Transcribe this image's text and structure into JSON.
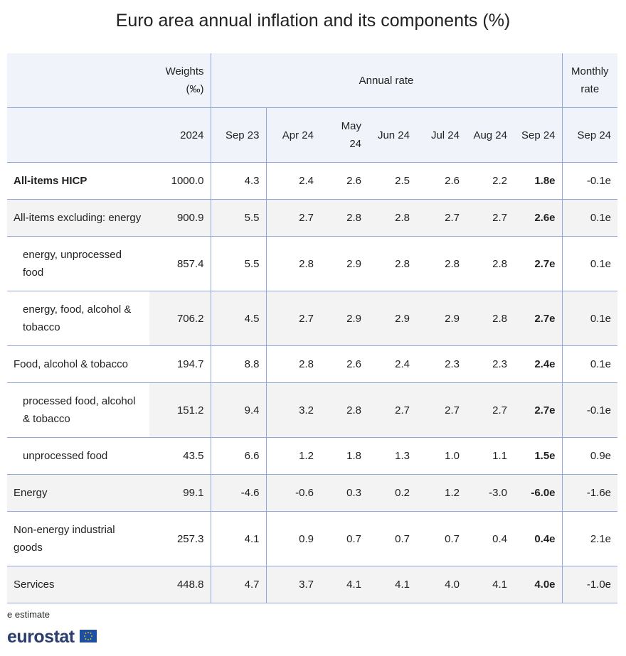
{
  "title": "Euro area annual inflation and its components (%)",
  "table": {
    "header": {
      "weights": "Weights (‰)",
      "annual": "Annual rate",
      "monthly": "Monthly rate",
      "weights_year": "2024",
      "periods": [
        "Sep 23",
        "Apr 24",
        "May 24",
        "Jun 24",
        "Jul 24",
        "Aug 24",
        "Sep 24"
      ],
      "monthly_period": "Sep 24"
    },
    "rows": [
      {
        "label": "All-items HICP",
        "bold": true,
        "indent": false,
        "weight": "1000.0",
        "values": [
          "4.3",
          "2.4",
          "2.6",
          "2.5",
          "2.6",
          "2.2",
          "1.8e"
        ],
        "monthly": "-0.1e"
      },
      {
        "label": "All-items excluding: energy",
        "bold": false,
        "indent": false,
        "weight": "900.9",
        "values": [
          "5.5",
          "2.7",
          "2.8",
          "2.8",
          "2.7",
          "2.7",
          "2.6e"
        ],
        "monthly": "0.1e"
      },
      {
        "label": "energy, unprocessed food",
        "bold": false,
        "indent": true,
        "weight": "857.4",
        "values": [
          "5.5",
          "2.8",
          "2.9",
          "2.8",
          "2.8",
          "2.8",
          "2.7e"
        ],
        "monthly": "0.1e"
      },
      {
        "label": "energy, food, alcohol & tobacco",
        "bold": false,
        "indent": true,
        "weight": "706.2",
        "values": [
          "4.5",
          "2.7",
          "2.9",
          "2.9",
          "2.9",
          "2.8",
          "2.7e"
        ],
        "monthly": "0.1e"
      },
      {
        "label": "Food, alcohol & tobacco",
        "bold": false,
        "indent": false,
        "weight": "194.7",
        "values": [
          "8.8",
          "2.8",
          "2.6",
          "2.4",
          "2.3",
          "2.3",
          "2.4e"
        ],
        "monthly": "0.1e"
      },
      {
        "label": "processed food, alcohol & tobacco",
        "bold": false,
        "indent": true,
        "weight": "151.2",
        "values": [
          "9.4",
          "3.2",
          "2.8",
          "2.7",
          "2.7",
          "2.7",
          "2.7e"
        ],
        "monthly": "-0.1e"
      },
      {
        "label": "unprocessed food",
        "bold": false,
        "indent": true,
        "weight": "43.5",
        "values": [
          "6.6",
          "1.2",
          "1.8",
          "1.3",
          "1.0",
          "1.1",
          "1.5e"
        ],
        "monthly": "0.9e"
      },
      {
        "label": "Energy",
        "bold": false,
        "indent": false,
        "weight": "99.1",
        "values": [
          "-4.6",
          "-0.6",
          "0.3",
          "0.2",
          "1.2",
          "-3.0",
          "-6.0e"
        ],
        "monthly": "-1.6e"
      },
      {
        "label": "Non-energy industrial goods",
        "bold": false,
        "indent": false,
        "weight": "257.3",
        "values": [
          "4.1",
          "0.9",
          "0.7",
          "0.7",
          "0.7",
          "0.4",
          "0.4e"
        ],
        "monthly": "2.1e"
      },
      {
        "label": "Services",
        "bold": false,
        "indent": false,
        "weight": "448.8",
        "values": [
          "4.7",
          "3.7",
          "4.1",
          "4.1",
          "4.0",
          "4.1",
          "4.0e"
        ],
        "monthly": "-1.0e"
      }
    ]
  },
  "footnote": "e estimate",
  "logo": "eurostat"
}
